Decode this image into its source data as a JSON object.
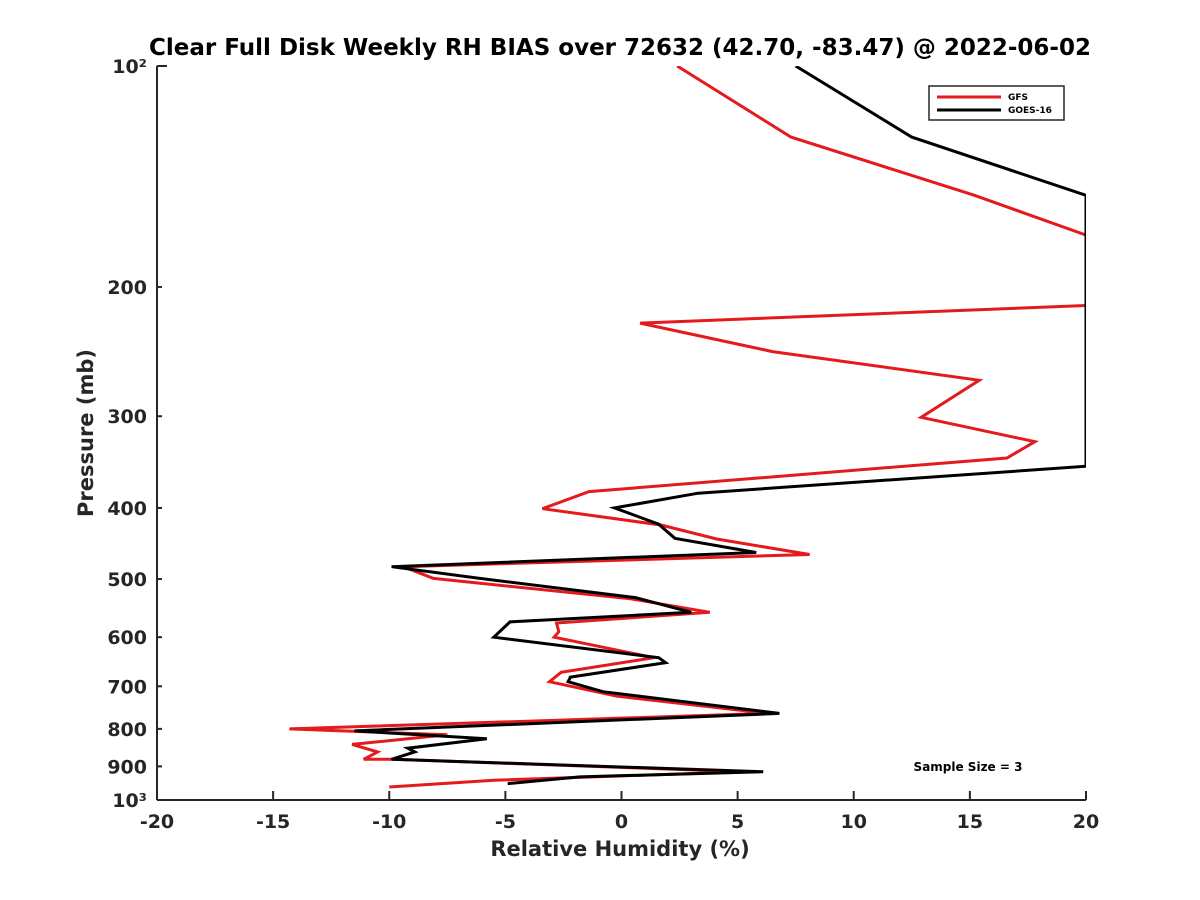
{
  "chart_data": {
    "type": "line",
    "title": "Clear Full Disk Weekly RH BIAS over 72632 (42.70, -83.47) @ 2022-06-02",
    "xlabel": "Relative Humidity (%)",
    "ylabel": "Pressure (mb)",
    "xlim": [
      -20,
      20
    ],
    "ylim": [
      100,
      1000
    ],
    "y_scale": "log",
    "y_reversed": true,
    "x_ticks": [
      -20,
      -15,
      -10,
      -5,
      0,
      5,
      10,
      15,
      20
    ],
    "x_tick_labels": [
      "-20",
      "-15",
      "-10",
      "-5",
      "0",
      "5",
      "10",
      "15",
      "20"
    ],
    "y_ticks": [
      100,
      200,
      300,
      400,
      500,
      600,
      700,
      800,
      900,
      1000
    ],
    "y_tick_labels": [
      "10²",
      "200",
      "300",
      "400",
      "500",
      "600",
      "700",
      "800",
      "900",
      "10³"
    ],
    "grid": false,
    "legend_position": "top-right",
    "annotation": "Sample Size = 3",
    "series": [
      {
        "name": "GFS",
        "color": "#e41a1c",
        "points": [
          [
            2.4,
            100
          ],
          [
            7.3,
            125
          ],
          [
            15.2,
            150
          ],
          [
            20.0,
            170
          ],
          [
            20.0,
            212
          ],
          [
            0.8,
            224
          ],
          [
            6.5,
            245
          ],
          [
            15.4,
            268
          ],
          [
            12.9,
            301
          ],
          [
            17.8,
            325
          ],
          [
            16.6,
            342
          ],
          [
            -1.4,
            380
          ],
          [
            -3.4,
            401
          ],
          [
            1.7,
            422
          ],
          [
            4.1,
            441
          ],
          [
            8.1,
            463
          ],
          [
            -9.4,
            481
          ],
          [
            -8.1,
            499
          ],
          [
            0.4,
            532
          ],
          [
            3.8,
            555
          ],
          [
            -2.8,
            574
          ],
          [
            -2.7,
            590
          ],
          [
            -2.9,
            600
          ],
          [
            1.4,
            640
          ],
          [
            -2.6,
            670
          ],
          [
            -3.1,
            690
          ],
          [
            -0.2,
            722
          ],
          [
            6.3,
            762
          ],
          [
            -14.3,
            800
          ],
          [
            -7.5,
            815
          ],
          [
            -11.6,
            840
          ],
          [
            -10.5,
            860
          ],
          [
            -11.1,
            880
          ],
          [
            -9.8,
            880
          ],
          [
            5.3,
            915
          ],
          [
            -5.5,
            940
          ],
          [
            -10.0,
            960
          ]
        ]
      },
      {
        "name": "GOES-16",
        "color": "#000000",
        "points": [
          [
            7.5,
            100
          ],
          [
            12.5,
            125
          ],
          [
            20.0,
            150
          ],
          [
            20.0,
            351
          ],
          [
            3.3,
            382
          ],
          [
            -0.3,
            400
          ],
          [
            1.6,
            421
          ],
          [
            2.3,
            440
          ],
          [
            5.8,
            460
          ],
          [
            -9.9,
            481
          ],
          [
            -6.1,
            499
          ],
          [
            0.6,
            530
          ],
          [
            3.0,
            555
          ],
          [
            -4.8,
            572
          ],
          [
            -5.5,
            600
          ],
          [
            1.6,
            640
          ],
          [
            1.9,
            650
          ],
          [
            -2.2,
            680
          ],
          [
            -2.3,
            690
          ],
          [
            -0.8,
            712
          ],
          [
            6.8,
            762
          ],
          [
            -11.5,
            805
          ],
          [
            -5.8,
            825
          ],
          [
            -9.2,
            850
          ],
          [
            -8.9,
            860
          ],
          [
            -9.9,
            880
          ],
          [
            6.1,
            915
          ],
          [
            -1.8,
            930
          ],
          [
            -4.9,
            950
          ]
        ]
      }
    ]
  }
}
